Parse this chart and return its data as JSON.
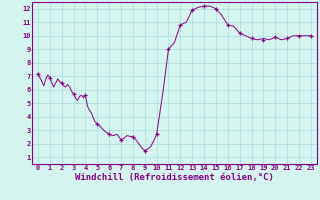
{
  "xlabel": "Windchill (Refroidissement éolien,°C)",
  "background_color": "#d4f5f0",
  "grid_color": "#aadddd",
  "line_color": "#880088",
  "xlim": [
    -0.5,
    23.5
  ],
  "ylim": [
    0.5,
    12.5
  ],
  "xticks": [
    0,
    1,
    2,
    3,
    4,
    5,
    6,
    7,
    8,
    9,
    10,
    11,
    12,
    13,
    14,
    15,
    16,
    17,
    18,
    19,
    20,
    21,
    22,
    23
  ],
  "yticks": [
    1,
    2,
    3,
    4,
    5,
    6,
    7,
    8,
    9,
    10,
    11,
    12
  ],
  "x": [
    0.0,
    0.17,
    0.33,
    0.5,
    0.67,
    0.83,
    1.0,
    1.17,
    1.33,
    1.5,
    1.67,
    1.83,
    2.0,
    2.17,
    2.33,
    2.5,
    2.67,
    2.83,
    3.0,
    3.17,
    3.33,
    3.5,
    3.67,
    3.83,
    4.0,
    4.17,
    4.33,
    4.5,
    4.67,
    4.83,
    5.0,
    5.33,
    5.67,
    6.0,
    6.33,
    6.67,
    7.0,
    7.25,
    7.5,
    7.75,
    8.0,
    8.25,
    8.5,
    8.75,
    9.0,
    9.25,
    9.5,
    9.75,
    10.0,
    10.5,
    11.0,
    11.5,
    12.0,
    12.5,
    13.0,
    13.5,
    14.0,
    14.5,
    15.0,
    15.5,
    16.0,
    16.5,
    17.0,
    17.5,
    18.0,
    18.5,
    19.0,
    19.5,
    20.0,
    20.5,
    21.0,
    21.5,
    22.0,
    22.5,
    23.0
  ],
  "y": [
    7.2,
    6.9,
    6.6,
    6.3,
    6.8,
    7.1,
    6.9,
    6.5,
    6.2,
    6.5,
    6.8,
    6.6,
    6.5,
    6.3,
    6.2,
    6.4,
    6.2,
    5.9,
    5.7,
    5.4,
    5.2,
    5.5,
    5.6,
    5.4,
    5.6,
    4.8,
    4.5,
    4.3,
    3.9,
    3.6,
    3.5,
    3.2,
    2.9,
    2.7,
    2.6,
    2.7,
    2.3,
    2.4,
    2.6,
    2.55,
    2.5,
    2.3,
    2.0,
    1.7,
    1.5,
    1.6,
    1.8,
    2.2,
    2.7,
    5.6,
    9.0,
    9.5,
    10.8,
    11.0,
    11.9,
    12.1,
    12.2,
    12.2,
    12.0,
    11.5,
    10.8,
    10.7,
    10.2,
    10.0,
    9.8,
    9.7,
    9.8,
    9.7,
    9.9,
    9.7,
    9.8,
    10.0,
    10.0,
    10.0,
    10.0
  ],
  "marker_x": [
    0,
    1,
    2,
    3,
    4,
    5,
    6,
    7,
    8,
    9,
    10,
    11,
    12,
    13,
    14,
    15,
    16,
    17,
    18,
    19,
    20,
    21,
    22,
    23
  ],
  "marker_y": [
    7.2,
    6.9,
    6.5,
    5.7,
    5.6,
    3.5,
    2.7,
    2.3,
    2.5,
    1.5,
    2.7,
    9.0,
    10.8,
    11.9,
    12.2,
    12.0,
    10.8,
    10.2,
    9.8,
    9.7,
    9.9,
    9.8,
    10.0,
    10.0
  ]
}
